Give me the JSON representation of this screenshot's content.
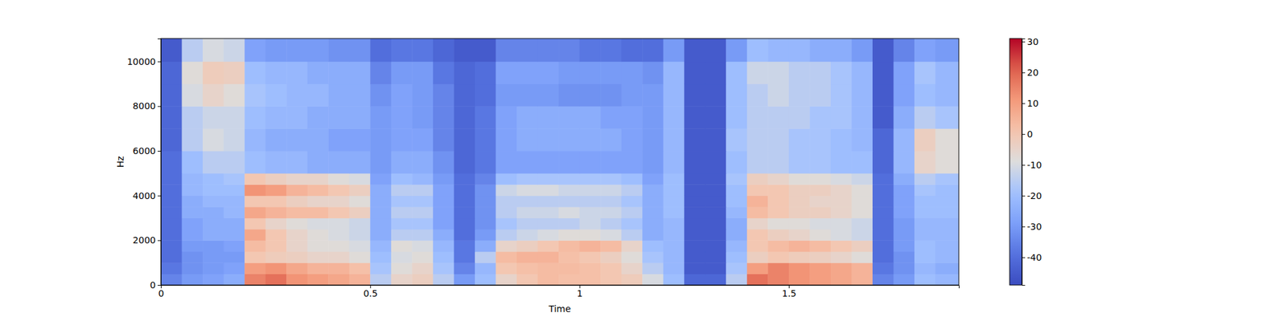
{
  "chart_data": {
    "type": "heatmap",
    "xlabel": "Time",
    "ylabel": "Hz",
    "xlim": [
      0,
      1.906
    ],
    "ylim": [
      0,
      11025
    ],
    "xticks": [
      0,
      0.5,
      1,
      1.5
    ],
    "yticks": [
      0,
      2000,
      4000,
      6000,
      8000,
      10000
    ],
    "x_edges": [
      0,
      0.05,
      0.1,
      0.15,
      0.2,
      0.25,
      0.3,
      0.35,
      0.4,
      0.45,
      0.5,
      0.55,
      0.6,
      0.65,
      0.7,
      0.75,
      0.8,
      0.85,
      0.9,
      0.95,
      1,
      1.05,
      1.1,
      1.15,
      1.2,
      1.25,
      1.3,
      1.35,
      1.4,
      1.45,
      1.5,
      1.55,
      1.6,
      1.65,
      1.7,
      1.75,
      1.8,
      1.85,
      1.906
    ],
    "y_edges": [
      0,
      500,
      1000,
      1500,
      2000,
      2500,
      3000,
      3500,
      4000,
      4500,
      5000,
      6000,
      7000,
      8000,
      9000,
      10000,
      11025
    ],
    "values": [
      [
        -35,
        -30,
        -28,
        -25,
        15,
        18,
        12,
        10,
        8,
        5,
        -15,
        -5,
        -3,
        -15,
        -30,
        -20,
        -5,
        0,
        3,
        2,
        2,
        0,
        -2,
        -10,
        -20,
        -42,
        -42,
        -15,
        18,
        15,
        12,
        10,
        8,
        5,
        -35,
        -30,
        -20,
        -22
      ],
      [
        -38,
        -32,
        -30,
        -28,
        10,
        12,
        8,
        5,
        5,
        2,
        -18,
        -8,
        -5,
        -18,
        -35,
        -22,
        0,
        2,
        3,
        3,
        2,
        0,
        -5,
        -15,
        -22,
        -45,
        -45,
        -18,
        10,
        15,
        12,
        10,
        8,
        5,
        -38,
        -32,
        -22,
        -25
      ],
      [
        -40,
        -32,
        -30,
        -30,
        0,
        -2,
        -3,
        -5,
        -5,
        -8,
        -20,
        -10,
        -8,
        -20,
        -38,
        -15,
        3,
        5,
        5,
        2,
        0,
        -3,
        -8,
        -18,
        -22,
        -45,
        -45,
        -20,
        -3,
        0,
        -2,
        -3,
        -5,
        -8,
        -40,
        -32,
        -20,
        -22
      ],
      [
        -40,
        -30,
        -30,
        -28,
        3,
        0,
        -5,
        -8,
        -8,
        -10,
        -22,
        -8,
        -10,
        -22,
        -38,
        -25,
        -5,
        -3,
        0,
        3,
        5,
        3,
        -5,
        -20,
        -22,
        -45,
        -45,
        -22,
        0,
        3,
        5,
        3,
        0,
        -3,
        -40,
        -30,
        -20,
        -22
      ],
      [
        -40,
        -28,
        -25,
        -25,
        8,
        0,
        -5,
        -8,
        -10,
        -12,
        -25,
        -15,
        -15,
        -25,
        -40,
        -30,
        -15,
        -12,
        -10,
        -8,
        -8,
        -10,
        -15,
        -25,
        -22,
        -45,
        -45,
        -25,
        0,
        -3,
        -5,
        -8,
        -10,
        -12,
        -40,
        -30,
        -22,
        -22
      ],
      [
        -40,
        -28,
        -25,
        -25,
        0,
        -5,
        -8,
        -10,
        -10,
        -12,
        -25,
        -18,
        -18,
        -28,
        -40,
        -32,
        -18,
        -15,
        -15,
        -15,
        -12,
        -15,
        -18,
        -25,
        -22,
        -45,
        -45,
        -25,
        -5,
        -8,
        -8,
        -10,
        -10,
        -12,
        -40,
        -30,
        -22,
        -22
      ],
      [
        -40,
        -25,
        -25,
        -22,
        8,
        5,
        3,
        3,
        0,
        -3,
        -25,
        -15,
        -15,
        -28,
        -40,
        -32,
        -15,
        -12,
        -12,
        -10,
        -12,
        -12,
        -15,
        -25,
        -20,
        -45,
        -45,
        -22,
        3,
        0,
        -3,
        -3,
        -5,
        -8,
        -40,
        -28,
        -20,
        -20
      ],
      [
        -40,
        -25,
        -22,
        -22,
        0,
        0,
        -3,
        -5,
        -5,
        -8,
        -25,
        -18,
        -18,
        -28,
        -40,
        -32,
        -15,
        -15,
        -15,
        -15,
        -15,
        -15,
        -18,
        -25,
        -20,
        -45,
        -45,
        -20,
        5,
        0,
        -3,
        -5,
        -5,
        -8,
        -40,
        -28,
        -20,
        -20
      ],
      [
        -40,
        -22,
        -20,
        -20,
        12,
        10,
        5,
        3,
        0,
        -3,
        -25,
        -15,
        -15,
        -28,
        -40,
        -32,
        -12,
        -10,
        -10,
        -12,
        -12,
        -12,
        -15,
        -25,
        -20,
        -45,
        -45,
        -20,
        0,
        0,
        -3,
        -3,
        -5,
        -8,
        -40,
        -28,
        -18,
        -20
      ],
      [
        -40,
        -22,
        -20,
        -18,
        0,
        -3,
        -5,
        -5,
        -8,
        -10,
        -28,
        -20,
        -22,
        -30,
        -40,
        -35,
        -20,
        -18,
        -18,
        -18,
        -18,
        -18,
        -20,
        -28,
        -20,
        -45,
        -45,
        -18,
        -3,
        -5,
        -8,
        -8,
        -10,
        -12,
        -40,
        -25,
        -15,
        -18
      ],
      [
        -40,
        -20,
        -15,
        -15,
        -20,
        -22,
        -22,
        -25,
        -25,
        -25,
        -30,
        -25,
        -25,
        -32,
        -42,
        -38,
        -28,
        -28,
        -28,
        -28,
        -28,
        -28,
        -28,
        -30,
        -22,
        -45,
        -45,
        -20,
        -15,
        -15,
        -18,
        -18,
        -20,
        -20,
        -42,
        -22,
        -5,
        -8
      ],
      [
        -42,
        -15,
        -10,
        -12,
        -22,
        -25,
        -25,
        -25,
        -28,
        -28,
        -30,
        -28,
        -28,
        -35,
        -42,
        -38,
        -28,
        -25,
        -25,
        -25,
        -25,
        -25,
        -28,
        -30,
        -22,
        -45,
        -45,
        -18,
        -15,
        -15,
        -18,
        -18,
        -20,
        -22,
        -42,
        -22,
        -3,
        -8
      ],
      [
        -42,
        -15,
        -12,
        -12,
        -20,
        -22,
        -22,
        -25,
        -25,
        -25,
        -30,
        -28,
        -30,
        -35,
        -42,
        -38,
        -28,
        -25,
        -25,
        -25,
        -25,
        -28,
        -28,
        -30,
        -22,
        -45,
        -45,
        -20,
        -15,
        -15,
        -15,
        -18,
        -18,
        -22,
        -45,
        -25,
        -15,
        -18
      ],
      [
        -42,
        -10,
        -5,
        -8,
        -18,
        -20,
        -22,
        -22,
        -25,
        -25,
        -32,
        -28,
        -30,
        -35,
        -42,
        -40,
        -30,
        -30,
        -30,
        -32,
        -32,
        -32,
        -30,
        -30,
        -22,
        -45,
        -45,
        -20,
        -15,
        -12,
        -15,
        -15,
        -18,
        -22,
        -45,
        -28,
        -20,
        -22
      ],
      [
        -42,
        -8,
        -2,
        -3,
        -20,
        -22,
        -22,
        -25,
        -25,
        -25,
        -35,
        -30,
        -30,
        -38,
        -42,
        -40,
        -28,
        -28,
        -28,
        -30,
        -30,
        -30,
        -30,
        -32,
        -22,
        -45,
        -45,
        -20,
        -12,
        -12,
        -15,
        -15,
        -18,
        -22,
        -45,
        -28,
        -18,
        -22
      ],
      [
        -45,
        -15,
        -10,
        -12,
        -28,
        -30,
        -30,
        -30,
        -32,
        -32,
        -40,
        -38,
        -38,
        -42,
        -45,
        -45,
        -35,
        -35,
        -35,
        -35,
        -38,
        -38,
        -40,
        -40,
        -30,
        -45,
        -45,
        -30,
        -20,
        -22,
        -22,
        -25,
        -25,
        -30,
        -45,
        -35,
        -28,
        -30
      ]
    ],
    "colorbar": {
      "range": [
        -49,
        31
      ],
      "ticks": [
        -40,
        -30,
        -20,
        -10,
        0,
        10,
        20,
        30
      ]
    }
  }
}
